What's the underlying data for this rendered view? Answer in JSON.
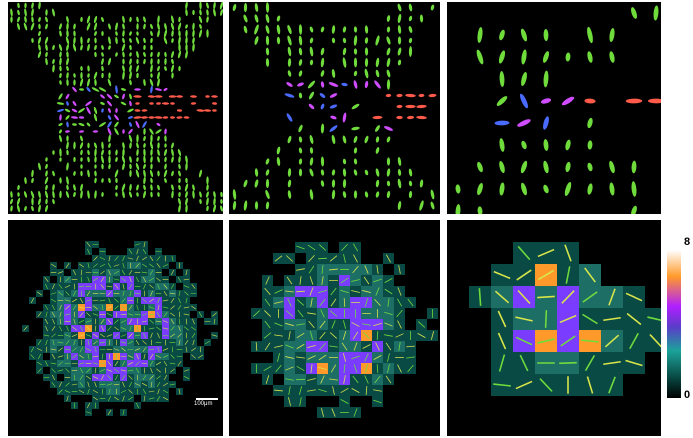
{
  "panels": [
    {
      "id": "glyphs-full",
      "kind": "glyph-field"
    },
    {
      "id": "glyphs-mid",
      "kind": "glyph-field"
    },
    {
      "id": "glyphs-zoom",
      "kind": "glyph-field"
    },
    {
      "id": "density-full",
      "kind": "density-grid"
    },
    {
      "id": "density-mid",
      "kind": "density-grid"
    },
    {
      "id": "density-zoom",
      "kind": "density-grid"
    }
  ],
  "scale_bar": {
    "label": "100μm"
  },
  "colorbar": {
    "max_label": "8",
    "min_label": "0",
    "colors": [
      "#ffffff",
      "#ff9a2a",
      "#b11fff",
      "#5a3cc9",
      "#1ba39a",
      "#0a4e48",
      "#000000"
    ]
  },
  "colors": {
    "green": "#6fdc3c",
    "red": "#ff5a4a",
    "blue": "#4a6bff",
    "magenta": "#d04cff",
    "teal": "#1d6f66",
    "dark_teal": "#0a4a44",
    "purple": "#7a3cff",
    "orange": "#ff9a2a"
  }
}
